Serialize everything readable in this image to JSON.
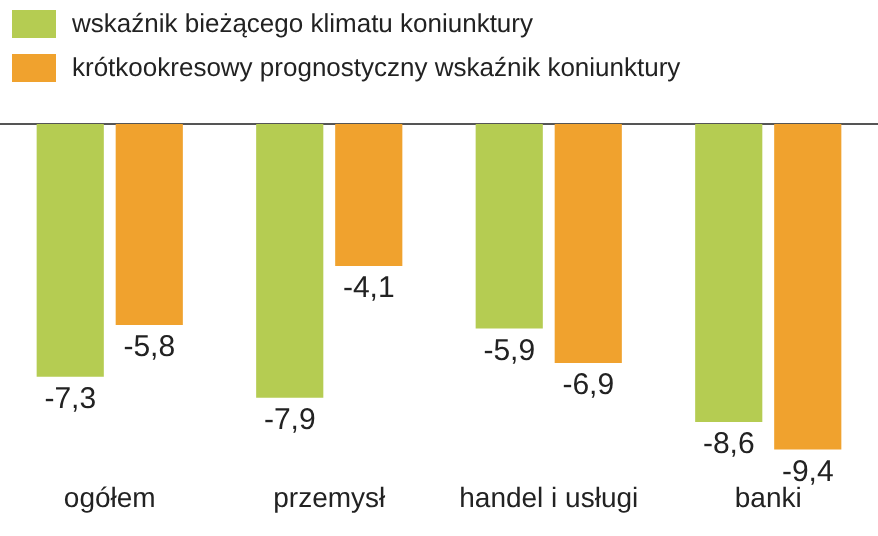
{
  "chart_data": {
    "type": "bar",
    "categories": [
      "ogółem",
      "przemysł",
      "handel i usługi",
      "banki"
    ],
    "series": [
      {
        "name": "wskaźnik bieżącego klimatu koniunktury",
        "color": "#b5cc52",
        "values": [
          -7.3,
          -7.9,
          -5.9,
          -8.6
        ],
        "value_labels": [
          "-7,3",
          "-7,9",
          "-5,9",
          "-8,6"
        ]
      },
      {
        "name": "krótkookresowy prognostyczny wskaźnik koniunktury",
        "color": "#f0a22e",
        "values": [
          -5.8,
          -4.1,
          -6.9,
          -9.4
        ],
        "value_labels": [
          "-5,8",
          "-4,1",
          "-6,9",
          "-9,4"
        ]
      }
    ],
    "grid": false,
    "legend": "top left"
  }
}
